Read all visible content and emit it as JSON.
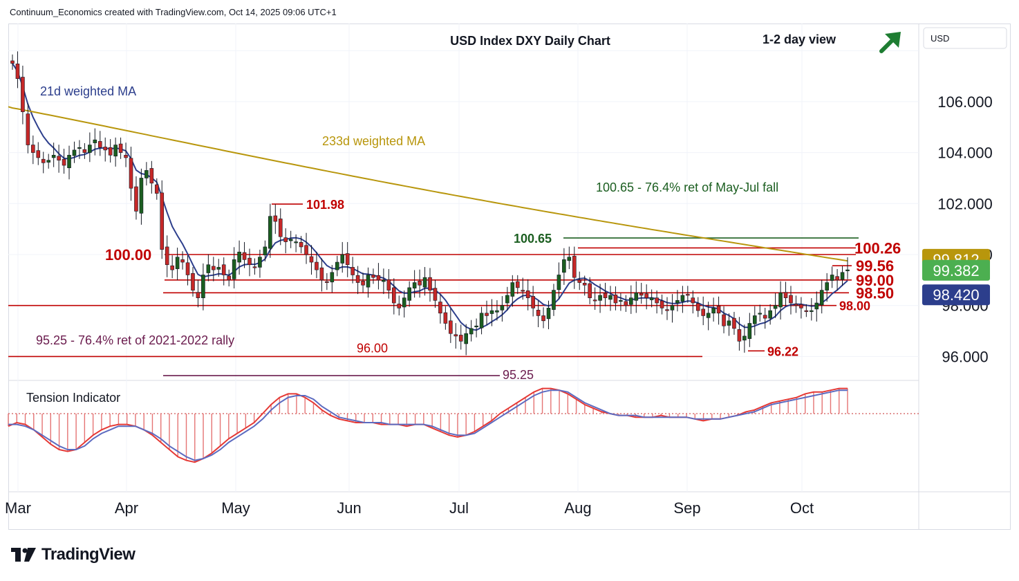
{
  "header": {
    "attribution": "Continuum_Economics created with TradingView.com, Oct 14, 2025 09:06 UTC+1",
    "title": "USD Index DXY Daily Chart",
    "view": "1-2 day view",
    "currency": "USD"
  },
  "logo": {
    "text": "TradingView"
  },
  "colors": {
    "up": "#1b5e20",
    "down": "#c62828",
    "ma21": "#2c3e8c",
    "ma233": "#b8960c",
    "level": "#c00000",
    "fib_green": "#1b5e20",
    "fib_purple": "#6a1b4d",
    "arrow": "#1e7d32"
  },
  "annotations": {
    "ma21_label": "21d weighted MA",
    "ma233_label": "233d weighted MA",
    "fib_upper": "100.65 - 76.4% ret of May-Jul fall",
    "fib_lower": "95.25 - 76.4% ret of 2021-2022 rally",
    "tension_label": "Tension Indicator"
  },
  "chart_data": [
    {
      "type": "candlestick",
      "title": "USD Index DXY Daily Chart",
      "x_ticks": [
        "Mar",
        "Apr",
        "May",
        "Jun",
        "Jul",
        "Aug",
        "Sep",
        "Oct"
      ],
      "y_ticks": [
        "106.000",
        "104.000",
        "102.000",
        "100.000",
        "98.000",
        "96.000"
      ],
      "ylim": [
        95.0,
        108.8
      ],
      "grid": true,
      "price_tags": [
        {
          "value": "99.812",
          "color": "#b8960c"
        },
        {
          "value": "99.382",
          "color": "#4caf50"
        },
        {
          "value": "98.420",
          "color": "#2c3e8c"
        }
      ],
      "levels": [
        {
          "value": 100.65,
          "label": "100.65",
          "color": "#1b5e20"
        },
        {
          "value": 100.26,
          "label": "100.26",
          "color": "#c00000"
        },
        {
          "value": 100.0,
          "label": "100.00",
          "color": "#c00000"
        },
        {
          "value": 99.56,
          "label": "99.56",
          "color": "#c00000"
        },
        {
          "value": 99.0,
          "label": "99.00",
          "color": "#c00000"
        },
        {
          "value": 98.5,
          "label": "98.50",
          "color": "#c00000"
        },
        {
          "value": 98.0,
          "label": "98.00",
          "color": "#c00000"
        },
        {
          "value": 96.0,
          "label": "96.00",
          "color": "#c00000"
        },
        {
          "value": 95.25,
          "label": "95.25",
          "color": "#6a1b4d"
        }
      ],
      "swing_labels": [
        {
          "value": 101.98,
          "label": "101.98"
        },
        {
          "value": 96.22,
          "label": "96.22"
        }
      ],
      "closes": [
        107.5,
        106.9,
        105.6,
        104.3,
        104.0,
        103.8,
        103.6,
        103.7,
        103.9,
        103.7,
        103.5,
        103.9,
        104.1,
        104.2,
        104.0,
        104.3,
        104.5,
        104.2,
        104.1,
        103.9,
        104.3,
        104.0,
        103.8,
        102.6,
        101.7,
        103.0,
        103.3,
        102.8,
        102.4,
        100.2,
        99.6,
        99.4,
        99.9,
        99.7,
        99.2,
        98.6,
        98.3,
        99.2,
        99.6,
        99.4,
        99.5,
        99.2,
        99.0,
        99.8,
        100.1,
        99.8,
        99.6,
        99.5,
        99.9,
        100.3,
        101.5,
        101.3,
        100.7,
        100.5,
        100.6,
        100.5,
        100.3,
        100.0,
        99.7,
        99.4,
        99.0,
        98.9,
        99.3,
        99.7,
        100.0,
        99.6,
        99.2,
        98.9,
        98.8,
        99.2,
        99.1,
        99.0,
        99.0,
        98.6,
        98.1,
        97.9,
        98.3,
        98.7,
        98.9,
        98.8,
        99.1,
        98.6,
        98.2,
        97.7,
        97.3,
        96.9,
        96.8,
        96.6,
        96.9,
        97.1,
        97.2,
        97.7,
        97.6,
        97.8,
        97.8,
        98.0,
        98.4,
        98.9,
        98.7,
        98.6,
        98.3,
        97.9,
        97.6,
        97.4,
        97.9,
        98.6,
        99.2,
        99.8,
        99.9,
        99.1,
        98.9,
        98.8,
        98.3,
        98.2,
        98.4,
        98.3,
        98.4,
        98.1,
        98.2,
        98.0,
        98.3,
        98.5,
        98.4,
        98.3,
        98.3,
        98.1,
        97.9,
        97.8,
        98.0,
        98.2,
        98.4,
        98.4,
        98.1,
        97.8,
        97.6,
        97.7,
        97.9,
        97.7,
        97.2,
        97.4,
        97.1,
        96.6,
        96.8,
        97.3,
        97.6,
        97.7,
        97.5,
        97.8,
        98.0,
        98.5,
        98.3,
        98.1,
        98.0,
        97.9,
        97.8,
        97.8,
        98.1,
        98.6,
        98.9,
        99.2,
        99.0,
        99.3,
        99.4
      ]
    },
    {
      "type": "area",
      "title": "Tension Indicator",
      "series": [
        {
          "values": [
            -0.7,
            -0.5,
            -0.6,
            -0.9,
            -1.3,
            -1.7,
            -2.0,
            -2.1,
            -2.0,
            -1.6,
            -1.2,
            -0.9,
            -0.7,
            -0.6,
            -0.6,
            -0.7,
            -0.9,
            -1.2,
            -1.6,
            -2.0,
            -2.4,
            -2.6,
            -2.7,
            -2.5,
            -2.2,
            -1.8,
            -1.4,
            -1.1,
            -0.8,
            -0.5,
            0.0,
            0.5,
            0.9,
            1.1,
            1.1,
            0.9,
            0.6,
            0.2,
            -0.1,
            -0.3,
            -0.4,
            -0.5,
            -0.5,
            -0.5,
            -0.6,
            -0.6,
            -0.6,
            -0.7,
            -0.6,
            -0.6,
            -0.8,
            -1.0,
            -1.2,
            -1.3,
            -1.2,
            -1.0,
            -0.7,
            -0.4,
            0.0,
            0.3,
            0.6,
            0.9,
            1.2,
            1.4,
            1.4,
            1.3,
            1.1,
            0.8,
            0.5,
            0.3,
            0.1,
            0.0,
            -0.1,
            -0.1,
            -0.2,
            -0.2,
            -0.2,
            -0.1,
            -0.2,
            -0.2,
            -0.2,
            -0.3,
            -0.4,
            -0.3,
            -0.3,
            -0.2,
            -0.1,
            0.1,
            0.2,
            0.4,
            0.6,
            0.7,
            0.8,
            0.9,
            1.1,
            1.2,
            1.2,
            1.3,
            1.4,
            1.4
          ]
        },
        {
          "values": [
            -0.6,
            -0.6,
            -0.7,
            -0.9,
            -1.2,
            -1.5,
            -1.8,
            -2.0,
            -2.0,
            -1.8,
            -1.4,
            -1.1,
            -0.9,
            -0.7,
            -0.7,
            -0.7,
            -0.9,
            -1.1,
            -1.4,
            -1.8,
            -2.1,
            -2.4,
            -2.6,
            -2.5,
            -2.3,
            -2.0,
            -1.6,
            -1.3,
            -1.0,
            -0.7,
            -0.3,
            0.2,
            0.6,
            0.9,
            1.0,
            1.0,
            0.8,
            0.4,
            0.1,
            -0.2,
            -0.3,
            -0.4,
            -0.5,
            -0.5,
            -0.5,
            -0.6,
            -0.6,
            -0.6,
            -0.6,
            -0.6,
            -0.7,
            -0.9,
            -1.1,
            -1.2,
            -1.2,
            -1.1,
            -0.8,
            -0.5,
            -0.2,
            0.1,
            0.4,
            0.7,
            1.0,
            1.2,
            1.3,
            1.3,
            1.2,
            0.9,
            0.6,
            0.4,
            0.2,
            0.0,
            -0.1,
            -0.1,
            -0.1,
            -0.2,
            -0.2,
            -0.2,
            -0.2,
            -0.2,
            -0.2,
            -0.3,
            -0.3,
            -0.3,
            -0.3,
            -0.2,
            -0.1,
            0.0,
            0.1,
            0.3,
            0.5,
            0.6,
            0.7,
            0.8,
            0.9,
            1.0,
            1.1,
            1.2,
            1.3,
            1.3
          ]
        }
      ]
    }
  ]
}
